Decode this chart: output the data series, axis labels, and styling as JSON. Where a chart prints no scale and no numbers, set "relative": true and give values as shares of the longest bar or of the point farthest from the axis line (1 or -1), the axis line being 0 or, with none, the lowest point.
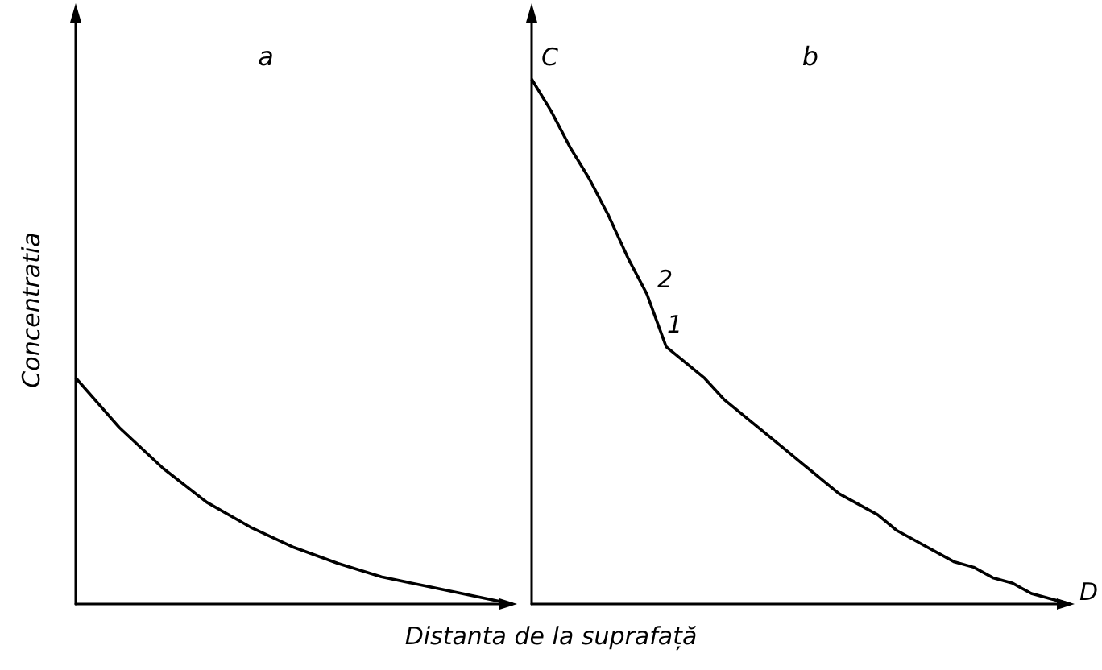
{
  "chart_data": [
    {
      "type": "line",
      "title": "a",
      "ylabel": "Concentratia",
      "xlabel": "Distanta de la suprafață",
      "relative": true,
      "color": "#000000",
      "categories": [
        null,
        null,
        null,
        null,
        null,
        null,
        null,
        null,
        null,
        null,
        null
      ],
      "values": [
        1,
        0.78,
        0.6,
        0.45,
        0.34,
        0.25,
        0.18,
        0.12,
        0.08,
        0.04,
        0
      ]
    },
    {
      "type": "line",
      "title": "b",
      "relative": true,
      "color": "#000000",
      "categories": [
        null,
        null,
        null,
        null,
        null,
        null,
        null,
        null,
        null,
        null,
        null,
        null,
        null,
        null,
        null,
        null,
        null,
        null,
        null,
        null,
        null,
        null,
        null,
        null,
        null,
        null,
        null,
        null,
        null
      ],
      "values": [
        1,
        0.94,
        0.87,
        0.81,
        0.74,
        0.66,
        0.59,
        0.49,
        0.46,
        0.43,
        0.39,
        0.36,
        0.33,
        0.3,
        0.27,
        0.24,
        0.21,
        0.19,
        0.17,
        0.14,
        0.12,
        0.1,
        0.08,
        0.07,
        0.05,
        0.04,
        0.02,
        0.01,
        0
      ],
      "annotations": [
        "C",
        "2",
        "1",
        "D"
      ]
    }
  ]
}
